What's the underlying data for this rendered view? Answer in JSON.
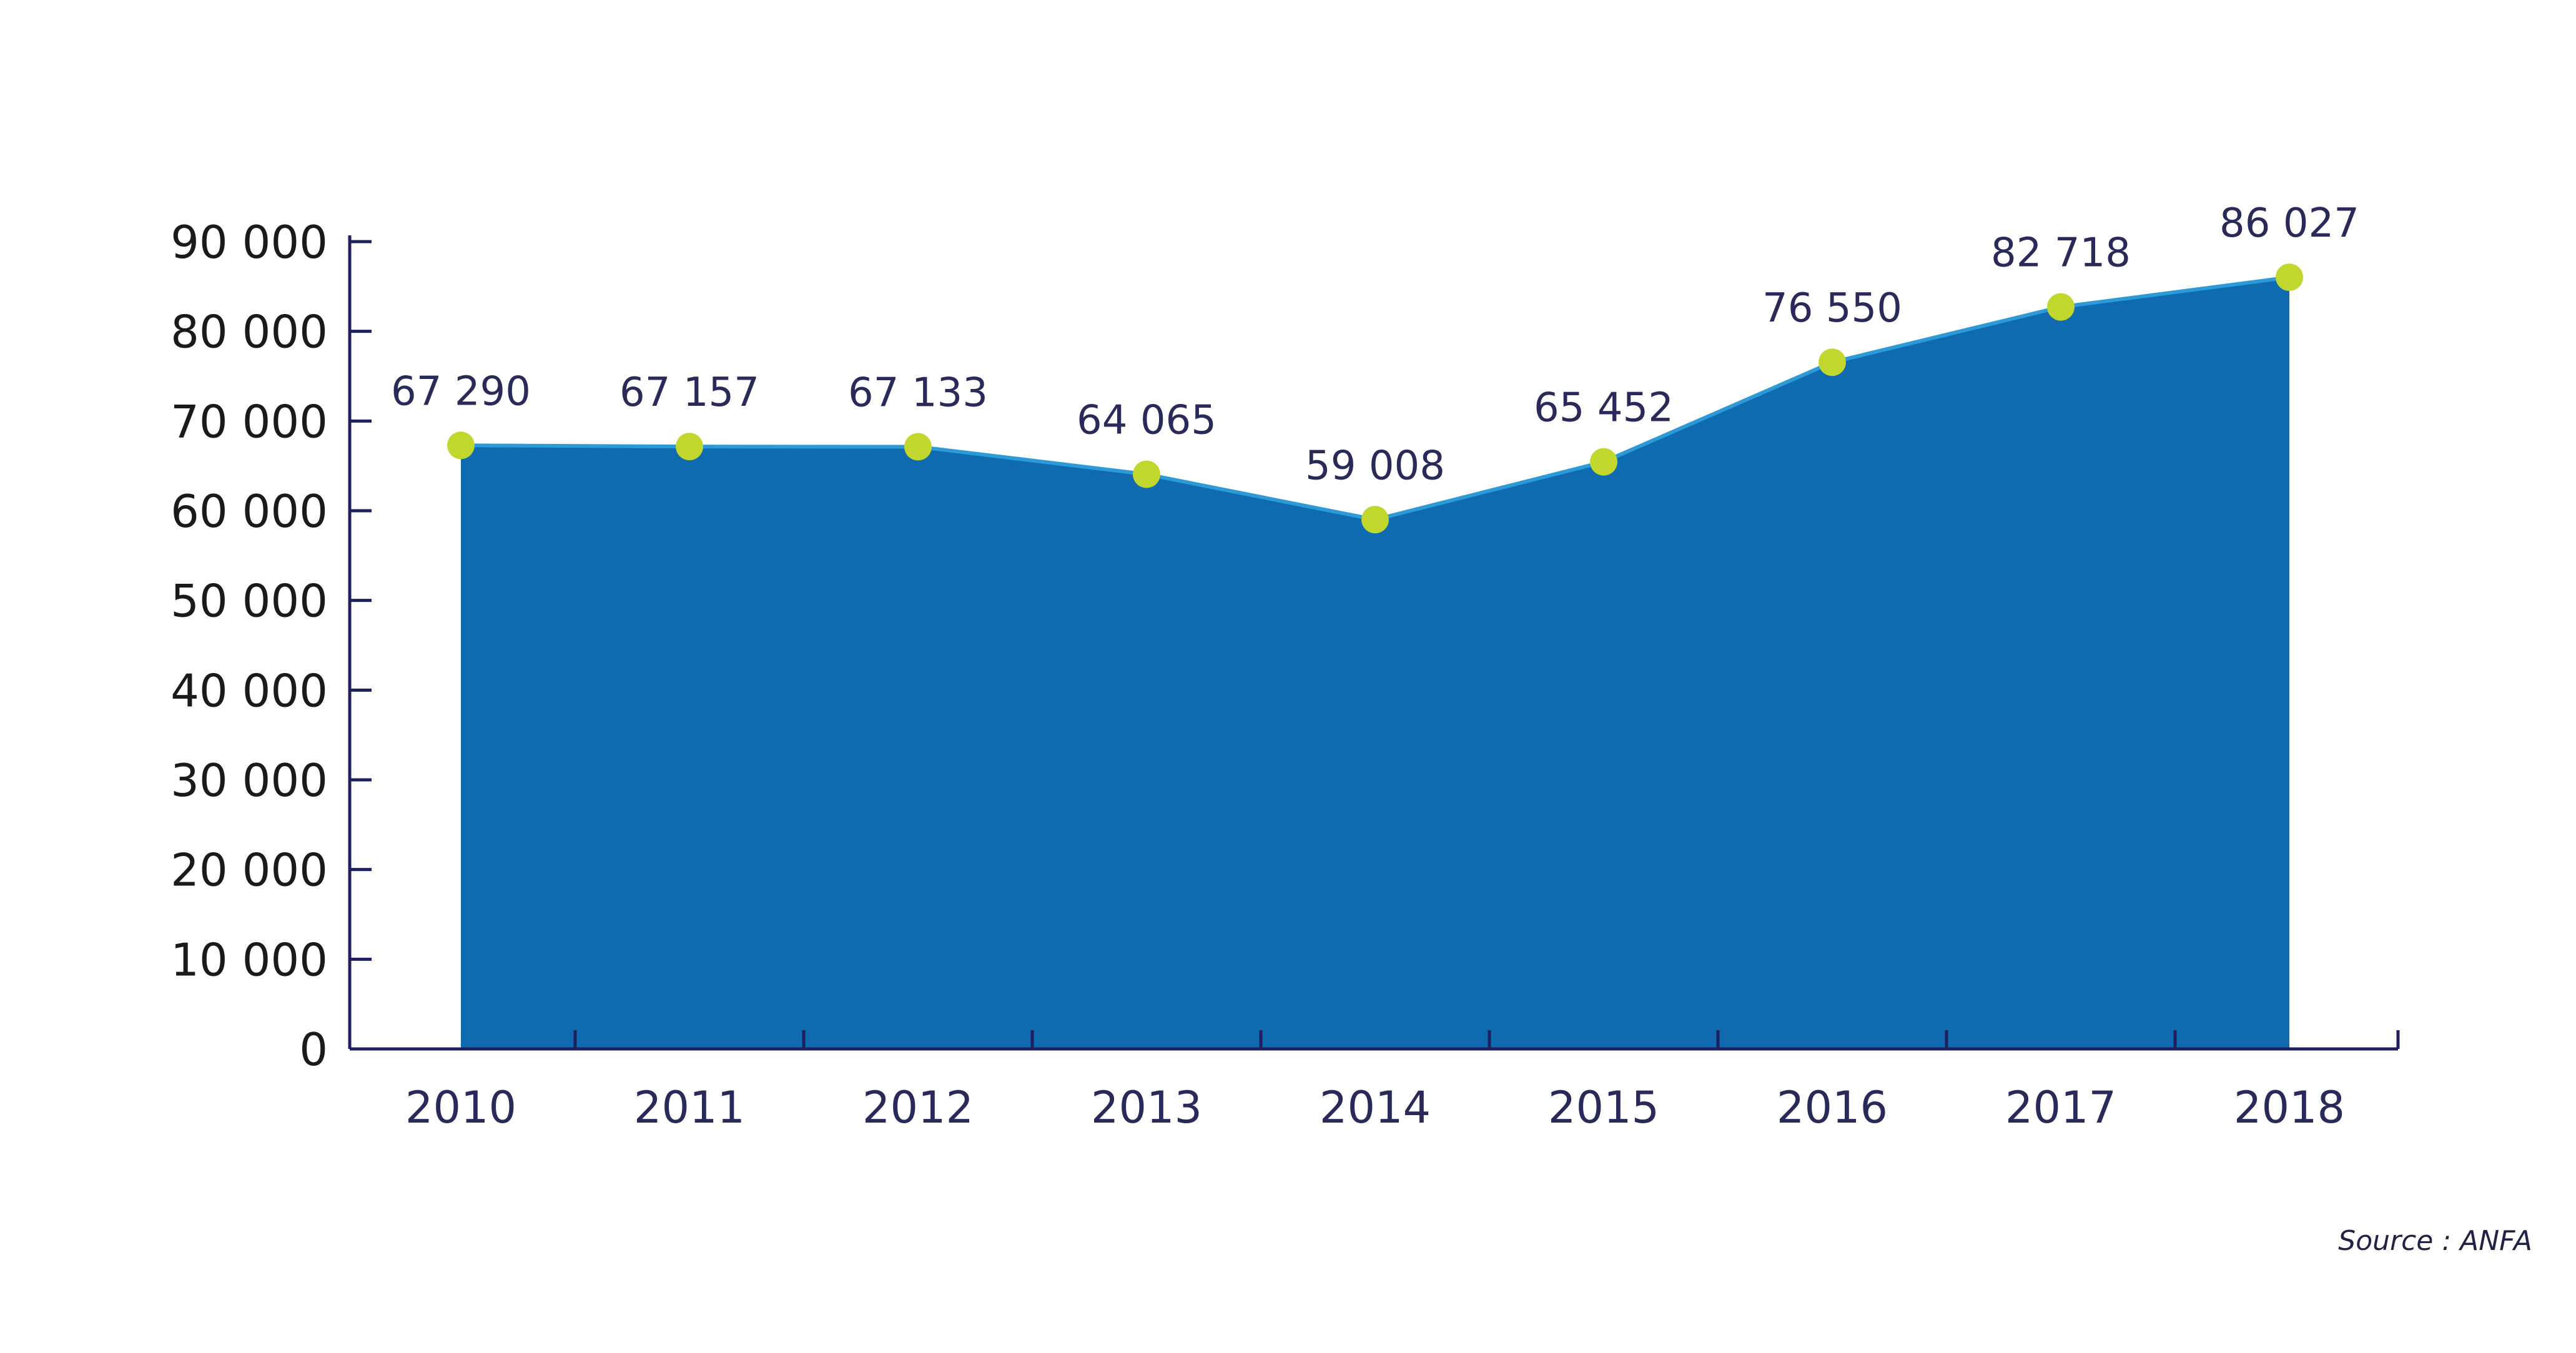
{
  "chart_data": {
    "type": "area",
    "categories": [
      "2010",
      "2011",
      "2012",
      "2013",
      "2014",
      "2015",
      "2016",
      "2017",
      "2018"
    ],
    "values": [
      67290,
      67157,
      67133,
      64065,
      59008,
      65452,
      76550,
      82718,
      86027
    ],
    "data_labels": [
      "67 290",
      "67 157",
      "67 133",
      "64 065",
      "59 008",
      "65 452",
      "76 550",
      "82 718",
      "86 027"
    ],
    "y_ticks": [
      "0",
      "10 000",
      "20 000",
      "30 000",
      "40 000",
      "50 000",
      "60 000",
      "70 000",
      "80 000",
      "90 000"
    ],
    "ylim": [
      0,
      90000
    ],
    "grid": false,
    "colors": {
      "area": "#0f6ab0",
      "line": "#2b9ad6",
      "marker": "#c1d72e",
      "axis": "#1f1f5c",
      "text": "#2a2a5a"
    }
  },
  "source": "Source : ANFA"
}
